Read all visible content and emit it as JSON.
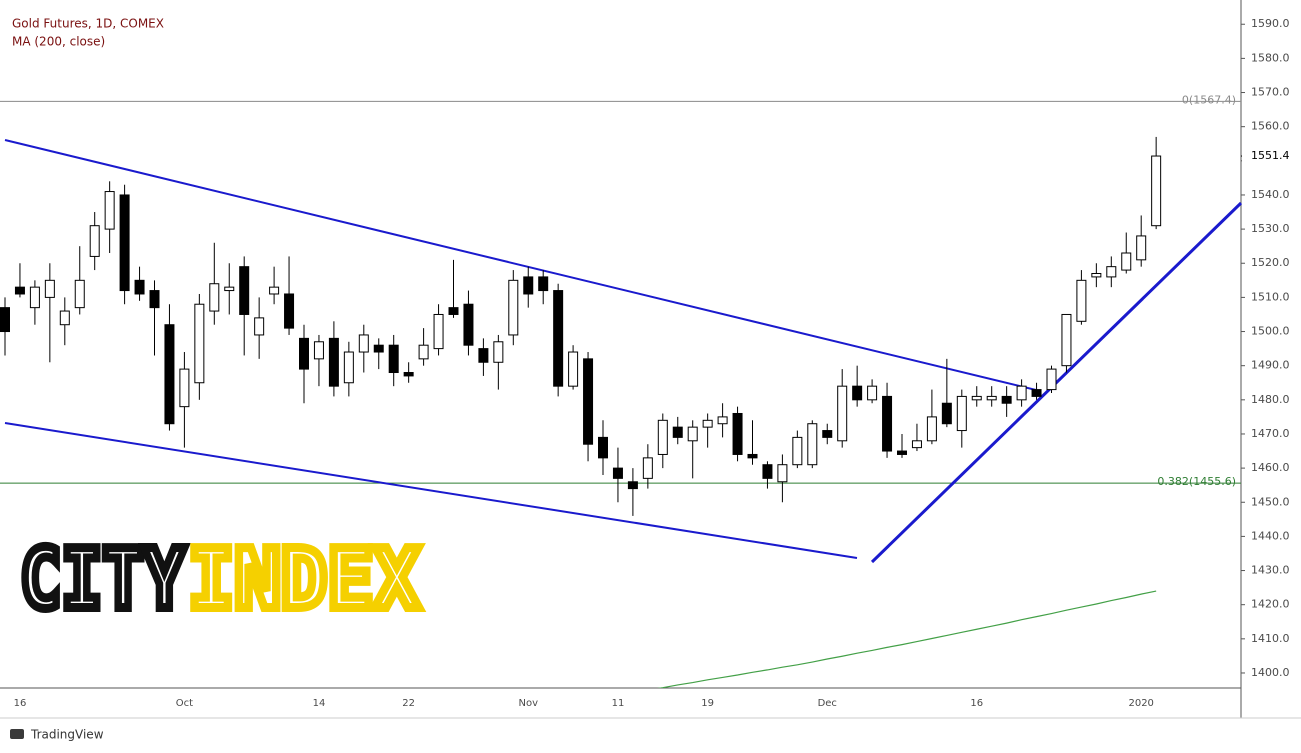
{
  "chart_data": {
    "type": "candlestick",
    "title": "Gold Futures, 1D, COMEX",
    "categories": [
      null,
      "16",
      null,
      null,
      null,
      null,
      null,
      null,
      null,
      null,
      null,
      null,
      "Oct",
      null,
      null,
      null,
      null,
      null,
      null,
      null,
      null,
      "14",
      null,
      null,
      null,
      null,
      null,
      "22",
      null,
      null,
      null,
      null,
      null,
      null,
      null,
      "Nov",
      null,
      null,
      null,
      null,
      null,
      "11",
      null,
      null,
      null,
      null,
      null,
      "19",
      null,
      null,
      null,
      null,
      null,
      null,
      null,
      "Dec",
      null,
      null,
      null,
      null,
      null,
      null,
      null,
      null,
      null,
      "16",
      null,
      null,
      null,
      null,
      null,
      null,
      null,
      null,
      null,
      null,
      "2020",
      null
    ],
    "open": [
      1507,
      1513,
      1507,
      1510,
      1502,
      1507,
      1522,
      1530,
      1540,
      1515,
      1512,
      1502,
      1478,
      1485,
      1506,
      1512,
      1519,
      1499,
      1511,
      1511,
      1498,
      1492,
      1498,
      1485,
      1494,
      1496,
      1496,
      1488,
      1492,
      1495,
      1507,
      1508,
      1495,
      1491,
      1499,
      1516,
      1516,
      1512,
      1484,
      1492,
      1469,
      1460,
      1456,
      1457,
      1464,
      1472,
      1468,
      1472,
      1473,
      1476,
      1464,
      1461,
      1456,
      1461,
      1461,
      1471,
      1468,
      1484,
      1480,
      1481,
      1465,
      1466,
      1468,
      1479,
      1471,
      1480,
      1480,
      1481,
      1480,
      1483,
      1483,
      1490,
      1503,
      1516,
      1516,
      1518,
      1521,
      1531
    ],
    "high": [
      1510,
      1520,
      1515,
      1520,
      1510,
      1525,
      1535,
      1544,
      1543,
      1519,
      1515,
      1508,
      1494,
      1511,
      1526,
      1520,
      1522,
      1510,
      1519,
      1522,
      1502,
      1499,
      1503,
      1497,
      1502,
      1498,
      1499,
      1491,
      1501,
      1508,
      1521,
      1512,
      1498,
      1499,
      1518,
      1519,
      1518,
      1514,
      1496,
      1494,
      1474,
      1466,
      1460,
      1467,
      1476,
      1475,
      1474,
      1476,
      1479,
      1478,
      1474,
      1462,
      1464,
      1471,
      1474,
      1473,
      1489,
      1490,
      1486,
      1485,
      1470,
      1473,
      1483,
      1492,
      1483,
      1484,
      1484,
      1484,
      1486,
      1485,
      1490,
      1505,
      1518,
      1520,
      1522,
      1529,
      1534,
      1557
    ],
    "low": [
      1493,
      1510,
      1502,
      1491,
      1496,
      1505,
      1518,
      1523,
      1508,
      1509,
      1493,
      1471,
      1466,
      1480,
      1502,
      1505,
      1493,
      1492,
      1508,
      1499,
      1479,
      1484,
      1481,
      1481,
      1488,
      1489,
      1484,
      1485,
      1490,
      1493,
      1504,
      1493,
      1487,
      1483,
      1496,
      1507,
      1508,
      1481,
      1483,
      1462,
      1458,
      1450,
      1446,
      1454,
      1460,
      1467,
      1457,
      1466,
      1469,
      1462,
      1461,
      1454,
      1450,
      1460,
      1460,
      1467,
      1466,
      1478,
      1479,
      1463,
      1463,
      1465,
      1467,
      1472,
      1466,
      1478,
      1478,
      1475,
      1478,
      1480,
      1482,
      1488,
      1502,
      1513,
      1513,
      1517,
      1519,
      1530
    ],
    "close": [
      1500,
      1511,
      1513,
      1515,
      1506,
      1515,
      1531,
      1541,
      1512,
      1511,
      1507,
      1473,
      1489,
      1508,
      1514,
      1513,
      1505,
      1504,
      1513,
      1501,
      1489,
      1497,
      1484,
      1494,
      1499,
      1494,
      1488,
      1487,
      1496,
      1505,
      1505,
      1496,
      1491,
      1497,
      1515,
      1511,
      1512,
      1484,
      1494,
      1467,
      1463,
      1457,
      1454,
      1463,
      1474,
      1469,
      1472,
      1474,
      1475,
      1464,
      1463,
      1457,
      1461,
      1469,
      1473,
      1469,
      1484,
      1480,
      1484,
      1465,
      1464,
      1468,
      1475,
      1473,
      1481,
      1481,
      1481,
      1479,
      1484,
      1481,
      1489,
      1505,
      1515,
      1517,
      1519,
      1523,
      1528,
      1551.4
    ],
    "up_color": "#ffffff",
    "down_color": "#000000",
    "ma": {
      "name": "MA (200, close)",
      "color": "#43a047",
      "values": [
        null,
        null,
        null,
        null,
        null,
        null,
        null,
        null,
        null,
        null,
        null,
        null,
        null,
        null,
        null,
        null,
        null,
        null,
        null,
        null,
        null,
        null,
        null,
        null,
        null,
        null,
        null,
        null,
        null,
        null,
        null,
        null,
        null,
        null,
        null,
        null,
        null,
        null,
        null,
        null,
        null,
        null,
        null,
        1395.0,
        1395.7,
        1396.5,
        1397.2,
        1398.0,
        1398.7,
        1399.4,
        1400.2,
        1400.9,
        1401.7,
        1402.4,
        1403.2,
        1404.1,
        1404.9,
        1405.8,
        1406.6,
        1407.5,
        1408.3,
        1409.2,
        1410.1,
        1411.0,
        1411.9,
        1412.8,
        1413.7,
        1414.6,
        1415.6,
        1416.5,
        1417.4,
        1418.4,
        1419.3,
        1420.2,
        1421.2,
        1422.1,
        1423.1,
        1424.0
      ]
    },
    "levels": [
      {
        "value": 1567.4,
        "label": "0(1567.4)",
        "color": "#8a8a8a"
      },
      {
        "value": 1455.6,
        "label": "0.382(1455.6)",
        "color": "#2e7d32"
      }
    ],
    "ylim": [
      1395.6,
      1597.1
    ],
    "yticks": [
      {
        "value": 1400,
        "label": "1400.0"
      },
      {
        "value": 1410,
        "label": "1410.0"
      },
      {
        "value": 1420,
        "label": "1420.0"
      },
      {
        "value": 1430,
        "label": "1430.0"
      },
      {
        "value": 1440,
        "label": "1440.0"
      },
      {
        "value": 1450,
        "label": "1450.0"
      },
      {
        "value": 1460,
        "label": "1460.0"
      },
      {
        "value": 1470,
        "label": "1470.0"
      },
      {
        "value": 1480,
        "label": "1480.0"
      },
      {
        "value": 1490,
        "label": "1490.0"
      },
      {
        "value": 1500,
        "label": "1500.0"
      },
      {
        "value": 1510,
        "label": "1510.0"
      },
      {
        "value": 1520,
        "label": "1520.0"
      },
      {
        "value": 1530,
        "label": "1530.0"
      },
      {
        "value": 1540,
        "label": "1540.0"
      },
      {
        "value": 1550,
        "label": "1550.0"
      },
      {
        "value": 1560,
        "label": "1560.0"
      },
      {
        "value": 1570,
        "label": "1570.0"
      },
      {
        "value": 1580,
        "label": "1580.0"
      },
      {
        "value": 1590,
        "label": "1590.0"
      }
    ]
  },
  "watermark": {
    "left": "CITY",
    "right": "INDEX"
  },
  "footer": {
    "brand": "TradingView"
  }
}
